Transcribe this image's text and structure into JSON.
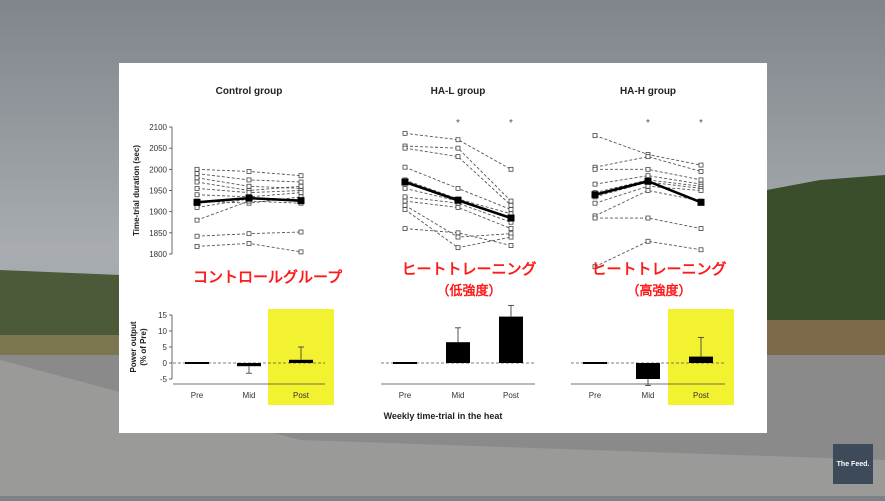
{
  "video": {
    "brand_logo_text": "The Feed."
  },
  "annotations": {
    "control": "コントロールグループ",
    "hal_line1": "ヒートトレーニング",
    "hal_line2": "（低強度）",
    "hah_line1": "ヒートトレーニング",
    "hah_line2": "（高強度）"
  },
  "chart_data": [
    {
      "type": "line",
      "panel": "Control group",
      "title": "Control group",
      "ylabel": "Time-trial duration (sec)",
      "ylim": [
        1800,
        2100
      ],
      "yticks": [
        1800,
        1850,
        1900,
        1950,
        2000,
        2050,
        2100
      ],
      "categories": [
        "Pre",
        "Mid",
        "Post"
      ],
      "mean": [
        1922,
        1932,
        1926
      ],
      "individuals": [
        [
          2000,
          1995,
          1985
        ],
        [
          1990,
          1975,
          1970
        ],
        [
          1980,
          1960,
          1955
        ],
        [
          1970,
          1950,
          1960
        ],
        [
          1955,
          1945,
          1950
        ],
        [
          1940,
          1935,
          1945
        ],
        [
          1925,
          1920,
          1935
        ],
        [
          1910,
          1930,
          1925
        ],
        [
          1880,
          1925,
          1920
        ],
        [
          1842,
          1848,
          1852
        ],
        [
          1818,
          1825,
          1805
        ]
      ],
      "significance": [
        false,
        false,
        false
      ]
    },
    {
      "type": "line",
      "panel": "HA-L group",
      "title": "HA-L group",
      "ylim": [
        1800,
        2100
      ],
      "categories": [
        "Pre",
        "Mid",
        "Post"
      ],
      "mean": [
        1970,
        1927,
        1885
      ],
      "individuals": [
        [
          2085,
          2070,
          2000
        ],
        [
          2055,
          2050,
          1925
        ],
        [
          2050,
          2030,
          1915
        ],
        [
          2005,
          1955,
          1905
        ],
        [
          1975,
          1930,
          1895
        ],
        [
          1955,
          1925,
          1885
        ],
        [
          1935,
          1920,
          1875
        ],
        [
          1925,
          1910,
          1860
        ],
        [
          1915,
          1840,
          1848
        ],
        [
          1905,
          1815,
          1840
        ],
        [
          1860,
          1850,
          1820
        ]
      ],
      "significance": [
        false,
        true,
        true
      ],
      "significance_marker": "*"
    },
    {
      "type": "line",
      "panel": "HA-H group",
      "title": "HA-H group",
      "ylim": [
        1800,
        2100
      ],
      "categories": [
        "Pre",
        "Mid",
        "Post"
      ],
      "mean": [
        1940,
        1972,
        1922
      ],
      "individuals": [
        [
          2080,
          2035,
          2010
        ],
        [
          2005,
          2030,
          1995
        ],
        [
          2000,
          2000,
          1975
        ],
        [
          1965,
          1985,
          1965
        ],
        [
          1945,
          1975,
          1960
        ],
        [
          1935,
          1970,
          1955
        ],
        [
          1920,
          1960,
          1950
        ],
        [
          1890,
          1950,
          1925
        ],
        [
          1885,
          1885,
          1860
        ],
        [
          1770,
          1830,
          1810
        ]
      ],
      "significance": [
        false,
        true,
        true
      ],
      "significance_marker": "*"
    },
    {
      "type": "bar",
      "panel": "Control group",
      "ylabel": "Power output (% of Pre)",
      "ylim": [
        -5,
        15
      ],
      "yticks": [
        -5,
        0,
        5,
        10,
        15
      ],
      "categories": [
        "Pre",
        "Mid",
        "Post"
      ],
      "values": [
        0,
        -1,
        1
      ],
      "errors": [
        0,
        2.2,
        4
      ],
      "highlight": "Post"
    },
    {
      "type": "bar",
      "panel": "HA-L group",
      "ylim": [
        -5,
        15
      ],
      "categories": [
        "Pre",
        "Mid",
        "Post"
      ],
      "values": [
        0,
        6.5,
        14.5
      ],
      "errors": [
        0,
        4.5,
        3.5
      ],
      "highlight": null
    },
    {
      "type": "bar",
      "panel": "HA-H group",
      "ylim": [
        -5,
        15
      ],
      "categories": [
        "Pre",
        "Mid",
        "Post"
      ],
      "values": [
        0,
        -5,
        2
      ],
      "errors": [
        0,
        2,
        6
      ],
      "highlight": "Post"
    }
  ],
  "xlabel": "Weekly time-trial in the heat",
  "colors": {
    "highlight": "#f2f230",
    "annotation": "#ff1a1a",
    "mean_line": "#000000",
    "individual_line": "#555555"
  }
}
